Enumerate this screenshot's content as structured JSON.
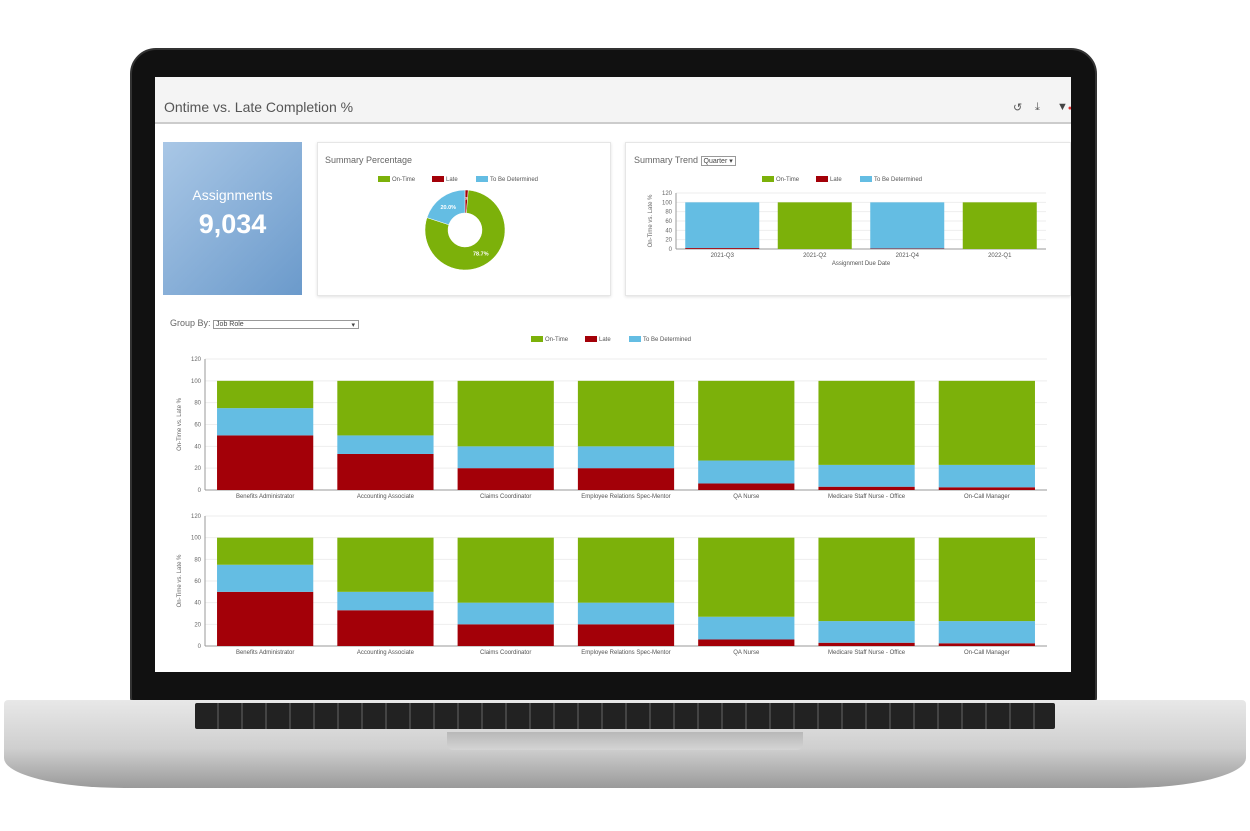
{
  "header": {
    "title": "Ontime vs. Late Completion %",
    "icons": [
      "history-icon",
      "download-icon",
      "filter-icon"
    ]
  },
  "tile": {
    "label": "Assignments",
    "value": "9,034"
  },
  "colors": {
    "on_time": "#7cb10a",
    "late": "#a30008",
    "tbd": "#64bde3"
  },
  "legend": [
    "On-Time",
    "Late",
    "To Be Determined"
  ],
  "summary_percentage": {
    "title": "Summary Percentage"
  },
  "summary_trend": {
    "title": "Summary Trend",
    "period_select": "Quarter"
  },
  "group_by": {
    "label": "Group By:",
    "value": "Job Role"
  },
  "chart_data": [
    {
      "type": "pie",
      "title": "Summary Percentage",
      "donut": true,
      "slices": [
        {
          "name": "On-Time",
          "value": 78.7,
          "label": "78.7%"
        },
        {
          "name": "Late",
          "value": 1.3,
          "label": "1.3%"
        },
        {
          "name": "To Be Determined",
          "value": 20.0,
          "label": "20.0%"
        }
      ]
    },
    {
      "type": "bar",
      "stacked": true,
      "categories": [
        "2021-Q3",
        "2021-Q2",
        "2021-Q4",
        "2022-Q1"
      ],
      "series": [
        {
          "name": "Late",
          "values": [
            2,
            0,
            1,
            0
          ]
        },
        {
          "name": "To Be Determined",
          "values": [
            98,
            0,
            99,
            0
          ]
        },
        {
          "name": "On-Time",
          "values": [
            0,
            100,
            0,
            100
          ]
        }
      ],
      "xlabel": "Assignment Due Date",
      "ylabel": "On-Time vs. Late %",
      "ylim": [
        0,
        120
      ],
      "yticks": [
        "0",
        "20",
        "40",
        "60",
        "80",
        "100",
        "120"
      ],
      "grid": true,
      "legend": "top"
    },
    {
      "type": "bar",
      "stacked": true,
      "categories": [
        "Benefits Administrator",
        "Accounting Associate",
        "Claims Coordinator",
        "Employee Relations Spec-Mentor",
        "QA Nurse",
        "Medicare Staff Nurse - Office",
        "On-Call Manager"
      ],
      "series": [
        {
          "name": "Late",
          "values": [
            50,
            33,
            20,
            20,
            6,
            3,
            2.5
          ]
        },
        {
          "name": "To Be Determined",
          "values": [
            25,
            17,
            20,
            20,
            21,
            20,
            20.5
          ]
        },
        {
          "name": "On-Time",
          "values": [
            25,
            50,
            60,
            60,
            73,
            77,
            77
          ]
        }
      ],
      "ylabel": "On-Time vs. Late %",
      "ylim": [
        0,
        120
      ],
      "yticks": [
        "0",
        "20",
        "40",
        "60",
        "80",
        "100",
        "120"
      ],
      "grid": true,
      "legend": "top"
    },
    {
      "type": "bar",
      "stacked": true,
      "categories": [
        "Benefits Administrator",
        "Accounting Associate",
        "Claims Coordinator",
        "Employee Relations Spec-Mentor",
        "QA Nurse",
        "Medicare Staff Nurse - Office",
        "On-Call Manager"
      ],
      "series": [
        {
          "name": "Late",
          "values": [
            50,
            33,
            20,
            20,
            6,
            3,
            2.5
          ]
        },
        {
          "name": "To Be Determined",
          "values": [
            25,
            17,
            20,
            20,
            21,
            20,
            20.5
          ]
        },
        {
          "name": "On-Time",
          "values": [
            25,
            50,
            60,
            60,
            73,
            77,
            77
          ]
        }
      ],
      "ylabel": "On-Time vs. Late %",
      "ylim": [
        0,
        120
      ],
      "yticks": [
        "0",
        "20",
        "40",
        "60",
        "80",
        "100",
        "120"
      ],
      "grid": true
    }
  ]
}
